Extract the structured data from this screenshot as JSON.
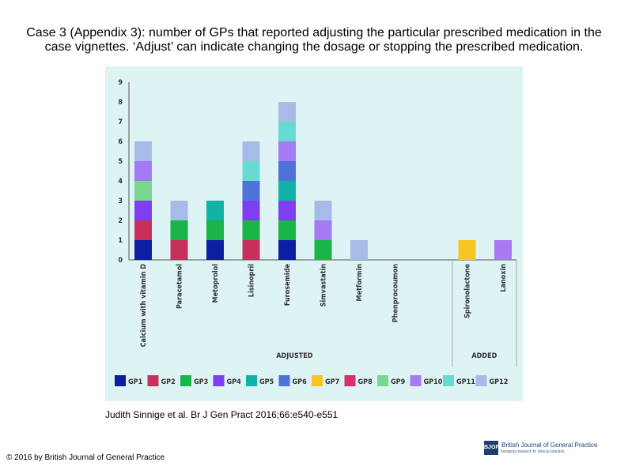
{
  "title": "Case 3 (Appendix 3): number of GPs that reported adjusting the particular prescribed medication in the case vignettes. ‘Adjust’ can indicate changing the dosage or stopping the prescribed medication.",
  "citation": "Judith Sinnige et al. Br J Gen Pract 2016;66:e540-e551",
  "copyright": "© 2016 by British Journal of General Practice",
  "logo": {
    "mark": "BJGP",
    "name": "British Journal of General Practice",
    "tagline": "bringing research to clinical practice"
  },
  "chart_data": {
    "type": "bar",
    "stacked": true,
    "ylim": [
      0,
      9
    ],
    "yticks": [
      "0",
      "1",
      "2",
      "3",
      "4",
      "5",
      "6",
      "7",
      "8",
      "9"
    ],
    "grid": false,
    "legend_position": "bottom",
    "categories": [
      "Calcium with vitamin D",
      "Paracetamol",
      "Metoprolol",
      "Lisinopril",
      "Furosemide",
      "Simvastatin",
      "Metformin",
      "Phenprocoumon",
      "",
      "Spironolactone",
      "Lanoxin"
    ],
    "groups": [
      {
        "label": "ADJUSTED",
        "from": 0,
        "to": 8
      },
      {
        "label": "ADDED",
        "from": 9,
        "to": 10
      }
    ],
    "series": [
      {
        "name": "GP1",
        "color": "#0b1fa0",
        "values": [
          1,
          0,
          1,
          0,
          1,
          0,
          0,
          0,
          0,
          0,
          0
        ]
      },
      {
        "name": "GP2",
        "color": "#c8305c",
        "values": [
          1,
          1,
          0,
          1,
          0,
          0,
          0,
          0,
          0,
          0,
          0
        ]
      },
      {
        "name": "GP3",
        "color": "#1ab548",
        "values": [
          0,
          1,
          1,
          1,
          1,
          1,
          0,
          0,
          0,
          0,
          0
        ]
      },
      {
        "name": "GP4",
        "color": "#7e3ff0",
        "values": [
          1,
          0,
          0,
          1,
          1,
          0,
          0,
          0,
          0,
          0,
          0
        ]
      },
      {
        "name": "GP5",
        "color": "#12b3a6",
        "values": [
          0,
          0,
          1,
          0,
          1,
          0,
          0,
          0,
          0,
          0,
          0
        ]
      },
      {
        "name": "GP6",
        "color": "#4f72d8",
        "values": [
          0,
          0,
          0,
          1,
          1,
          0,
          0,
          0,
          0,
          0,
          0
        ]
      },
      {
        "name": "GP7",
        "color": "#f6c523",
        "values": [
          0,
          0,
          0,
          0,
          0,
          0,
          0,
          0,
          0,
          1,
          0
        ]
      },
      {
        "name": "GP8",
        "color": "#d4306a",
        "values": [
          0,
          0,
          0,
          0,
          0,
          0,
          0,
          0,
          0,
          0,
          0
        ]
      },
      {
        "name": "GP9",
        "color": "#77d68f",
        "values": [
          1,
          0,
          0,
          0,
          0,
          0,
          0,
          0,
          0,
          0,
          0
        ]
      },
      {
        "name": "GP10",
        "color": "#a57af2",
        "values": [
          1,
          0,
          0,
          0,
          1,
          1,
          0,
          0,
          0,
          0,
          1
        ]
      },
      {
        "name": "GP11",
        "color": "#66dad3",
        "values": [
          0,
          0,
          0,
          1,
          1,
          0,
          0,
          0,
          0,
          0,
          0
        ]
      },
      {
        "name": "GP12",
        "color": "#a7bbe8",
        "values": [
          1,
          1,
          0,
          1,
          1,
          1,
          1,
          0,
          0,
          0,
          0
        ]
      }
    ]
  }
}
